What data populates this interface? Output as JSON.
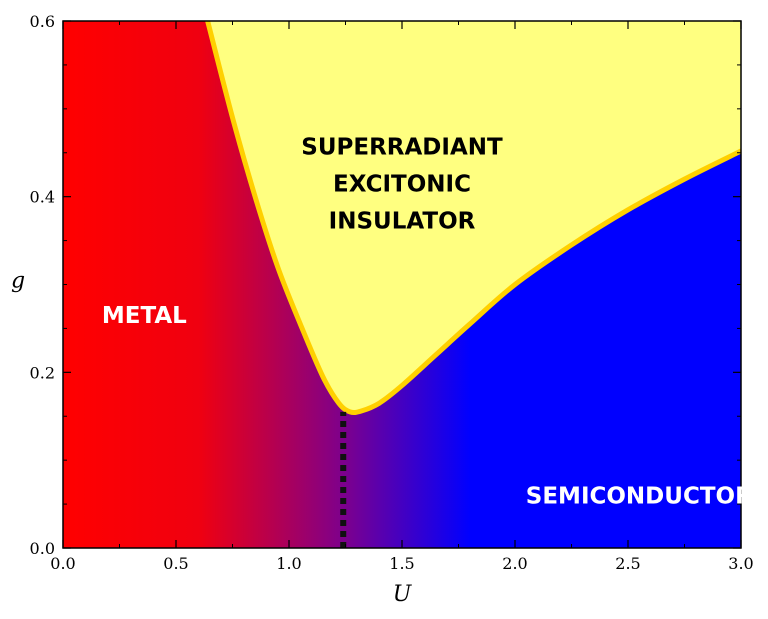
{
  "chart_data": {
    "type": "area",
    "title": "",
    "xlabel": "U",
    "ylabel": "g",
    "xlim": [
      0.0,
      3.0
    ],
    "ylim": [
      0.0,
      0.6
    ],
    "x_ticks": [
      "0.0",
      "0.5",
      "1.0",
      "1.5",
      "2.0",
      "2.5",
      "3.0"
    ],
    "y_ticks": [
      "0.0",
      "0.2",
      "0.4",
      "0.6"
    ],
    "grid": false,
    "boundary": {
      "name": "superradiant boundary",
      "color": "#ffd000",
      "x": [
        0.64,
        0.75,
        0.85,
        0.95,
        1.05,
        1.15,
        1.22,
        1.27,
        1.32,
        1.4,
        1.5,
        1.65,
        1.8,
        2.0,
        2.25,
        2.5,
        2.75,
        3.0
      ],
      "y": [
        0.6,
        0.49,
        0.4,
        0.32,
        0.255,
        0.195,
        0.165,
        0.155,
        0.156,
        0.165,
        0.185,
        0.22,
        0.255,
        0.3,
        0.345,
        0.385,
        0.42,
        0.452
      ]
    },
    "critical_line": {
      "x": 1.24,
      "y_range": [
        0.0,
        0.155
      ],
      "style": "dotted",
      "color": "#111111"
    },
    "regions": [
      {
        "label": "METAL",
        "lines": [
          "METAL"
        ],
        "color": "#ff0000",
        "text_color": "#ffffff",
        "x": 0.36,
        "y": 0.265
      },
      {
        "label": "SUPERRADIANT EXCITONIC INSULATOR",
        "lines": [
          "SUPERRADIANT",
          "EXCITONIC",
          "INSULATOR"
        ],
        "color": "#ffff80",
        "text_color": "#000000",
        "x": 1.5,
        "y": 0.415
      },
      {
        "label": "SEMICONDUCTOR",
        "lines": [
          "SEMICONDUCTOR"
        ],
        "color": "#0000ff",
        "text_color": "#ffffff",
        "x": 2.55,
        "y": 0.06
      }
    ]
  }
}
